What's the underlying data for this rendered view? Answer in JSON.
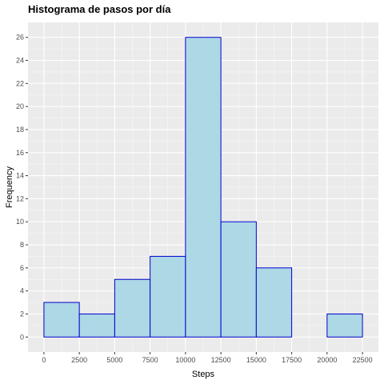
{
  "chart_data": {
    "type": "bar",
    "title": "Histograma de pasos por día",
    "xlabel": "Steps",
    "ylabel": "Frequency",
    "bin_width": 2500,
    "bins": [
      {
        "start": 0,
        "end": 2500,
        "count": 3
      },
      {
        "start": 2500,
        "end": 5000,
        "count": 2
      },
      {
        "start": 5000,
        "end": 7500,
        "count": 5
      },
      {
        "start": 7500,
        "end": 10000,
        "count": 7
      },
      {
        "start": 10000,
        "end": 12500,
        "count": 26
      },
      {
        "start": 12500,
        "end": 15000,
        "count": 10
      },
      {
        "start": 15000,
        "end": 17500,
        "count": 6
      },
      {
        "start": 17500,
        "end": 20000,
        "count": 0
      },
      {
        "start": 20000,
        "end": 22500,
        "count": 2
      }
    ],
    "x_ticks": [
      "0",
      "2500",
      "5000",
      "7500",
      "10000",
      "12500",
      "15000",
      "17500",
      "20000",
      "22500"
    ],
    "y_ticks": [
      "0",
      "2",
      "4",
      "6",
      "8",
      "10",
      "12",
      "14",
      "16",
      "18",
      "20",
      "22",
      "24",
      "26"
    ],
    "xlim": [
      -1125,
      23625
    ],
    "ylim": [
      -1.3,
      27.3
    ],
    "grid": true,
    "colors": {
      "bar_fill": "#add8e6",
      "bar_stroke": "#0000cd",
      "panel_bg": "#ebebeb",
      "grid_major": "#ffffff",
      "tick_label": "#4d4d4d"
    }
  }
}
